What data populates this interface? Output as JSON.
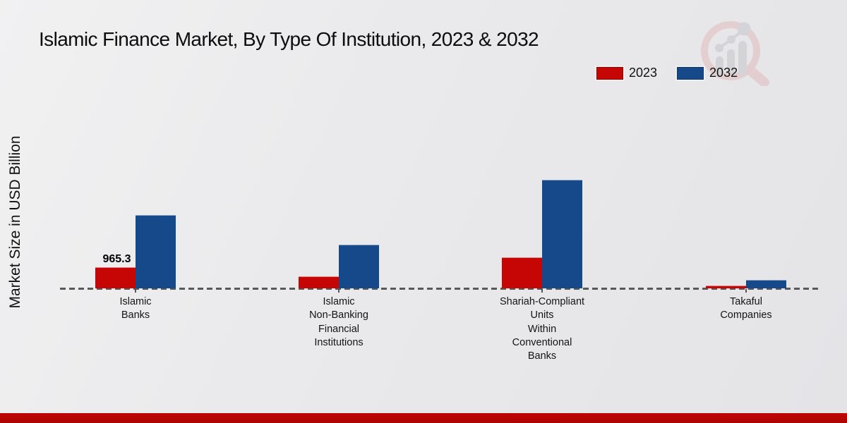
{
  "page": {
    "title": "Islamic Finance Market, By Type Of Institution, 2023 & 2032",
    "accent_bar_color": "#b50404",
    "background_color": "#e9e9eb",
    "watermark_icon": "magnifier-growth-chart-logo"
  },
  "legend": {
    "position": "top-right",
    "items": [
      {
        "label": "2023",
        "color": "#c60505"
      },
      {
        "label": "2032",
        "color": "#15498a"
      }
    ]
  },
  "chart_data": {
    "type": "bar",
    "title": "Islamic Finance Market, By Type Of Institution, 2023 & 2032",
    "xlabel": "",
    "ylabel": "Market Size in USD Billion",
    "categories": [
      "Islamic Banks",
      "Islamic Non-Banking Financial Institutions",
      "Shariah-Compliant Units Within Conventional Banks",
      "Takaful Companies"
    ],
    "categories_display": [
      "Islamic\nBanks",
      "Islamic\nNon-Banking\nFinancial\nInstitutions",
      "Shariah-Compliant\nUnits\nWithin\nConventional\nBanks",
      "Takaful\nCompanies"
    ],
    "series": [
      {
        "name": "2023",
        "color": "#c60505",
        "values": [
          965.3,
          550,
          1420,
          130
        ]
      },
      {
        "name": "2032",
        "color": "#15498a",
        "values": [
          3350,
          2000,
          4960,
          390
        ]
      }
    ],
    "data_labels": [
      {
        "series": "2023",
        "category": "Islamic Banks",
        "label": "965.3"
      }
    ],
    "ylim": [
      0,
      5200
    ],
    "grid": false,
    "legend_position": "top-right",
    "baseline_style": "dashed",
    "y_axis_ticks_visible": false
  }
}
